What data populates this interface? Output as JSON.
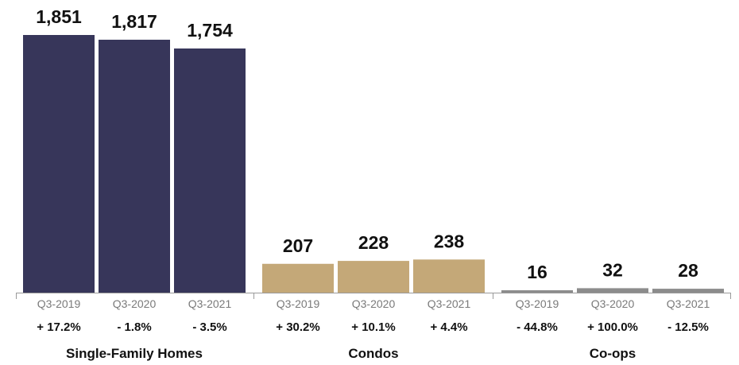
{
  "chart_data": {
    "type": "bar",
    "groups": [
      {
        "name": "Single-Family Homes",
        "color": "#37365a",
        "categories": [
          "Q3-2019",
          "Q3-2020",
          "Q3-2021"
        ],
        "values": [
          1851,
          1817,
          1754
        ],
        "value_labels": [
          "1,851",
          "1,817",
          "1,754"
        ],
        "changes": [
          "+ 17.2%",
          "- 1.8%",
          "- 3.5%"
        ]
      },
      {
        "name": "Condos",
        "color": "#c4a878",
        "categories": [
          "Q3-2019",
          "Q3-2020",
          "Q3-2021"
        ],
        "values": [
          207,
          228,
          238
        ],
        "value_labels": [
          "207",
          "228",
          "238"
        ],
        "changes": [
          "+ 30.2%",
          "+ 10.1%",
          "+ 4.4%"
        ]
      },
      {
        "name": "Co-ops",
        "color": "#8c8c8c",
        "categories": [
          "Q3-2019",
          "Q3-2020",
          "Q3-2021"
        ],
        "values": [
          16,
          32,
          28
        ],
        "value_labels": [
          "16",
          "32",
          "28"
        ],
        "changes": [
          "- 44.8%",
          "+ 100.0%",
          "- 12.5%"
        ]
      }
    ],
    "ylim": [
      0,
      1851
    ],
    "grid": false,
    "legend": "none"
  }
}
